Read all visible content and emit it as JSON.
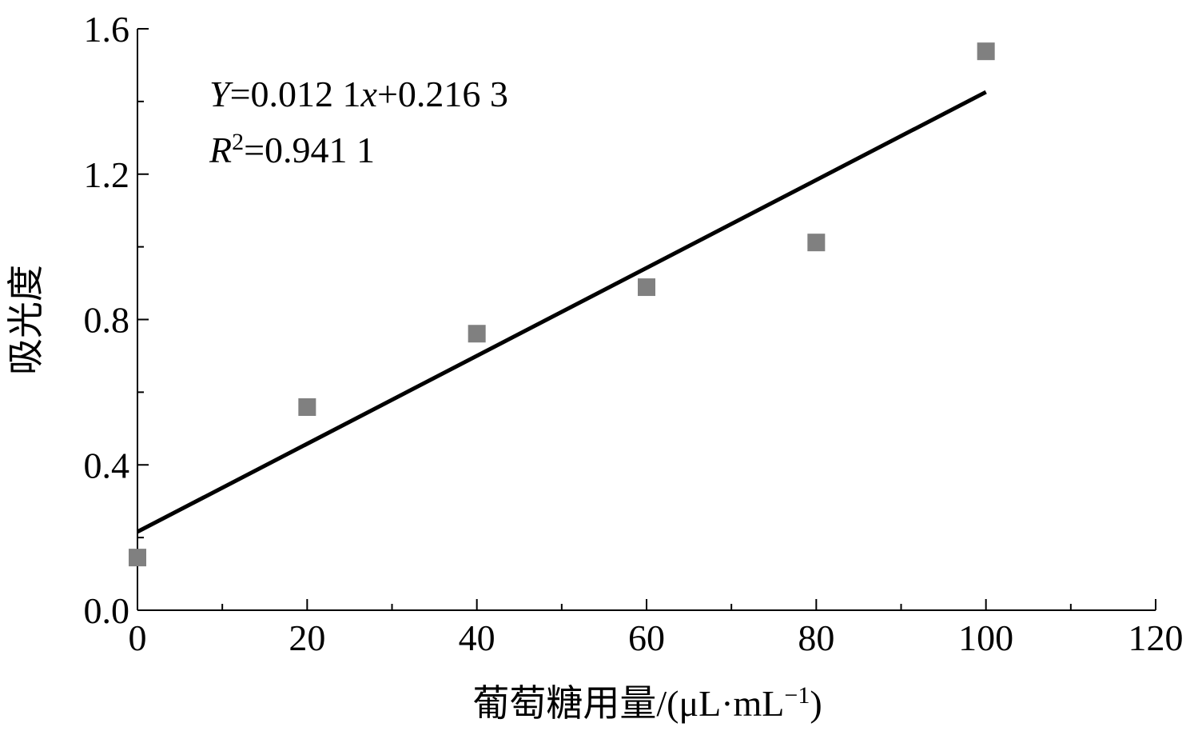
{
  "chart_data": {
    "type": "scatter",
    "x_label_parts": [
      {
        "text": "葡萄糖用量/(μL·mL"
      },
      {
        "text": "−1",
        "sup": true
      },
      {
        "text": ")"
      }
    ],
    "y_label": "吸光度",
    "annotations": [
      [
        {
          "text": "Y",
          "italic": true
        },
        {
          "text": "=0.012 1"
        },
        {
          "text": "x",
          "italic": true
        },
        {
          "text": "+0.216 3"
        }
      ],
      [
        {
          "text": "R",
          "italic": true
        },
        {
          "text": "2",
          "sup": true
        },
        {
          "text": "=0.941 1"
        }
      ]
    ],
    "x": [
      0,
      20,
      40,
      60,
      80,
      100
    ],
    "values": [
      0.145,
      0.559,
      0.761,
      0.889,
      1.012,
      1.538
    ],
    "color": "#808080",
    "trendline": {
      "x": [
        0,
        100
      ],
      "values": [
        0.216,
        1.426
      ],
      "color": "#000000"
    },
    "xlim": [
      0,
      120
    ],
    "xticks": [
      0,
      20,
      40,
      60,
      80,
      100,
      120
    ],
    "xminorticks": [
      10,
      30,
      50,
      70,
      90,
      110
    ],
    "ylim": [
      0,
      1.6
    ],
    "yticks": [
      {
        "value": 0,
        "label": "0.0"
      },
      0.4,
      0.8,
      1.2,
      1.6
    ],
    "yminorticks": [
      0.2,
      0.6,
      1.0,
      1.4
    ]
  }
}
